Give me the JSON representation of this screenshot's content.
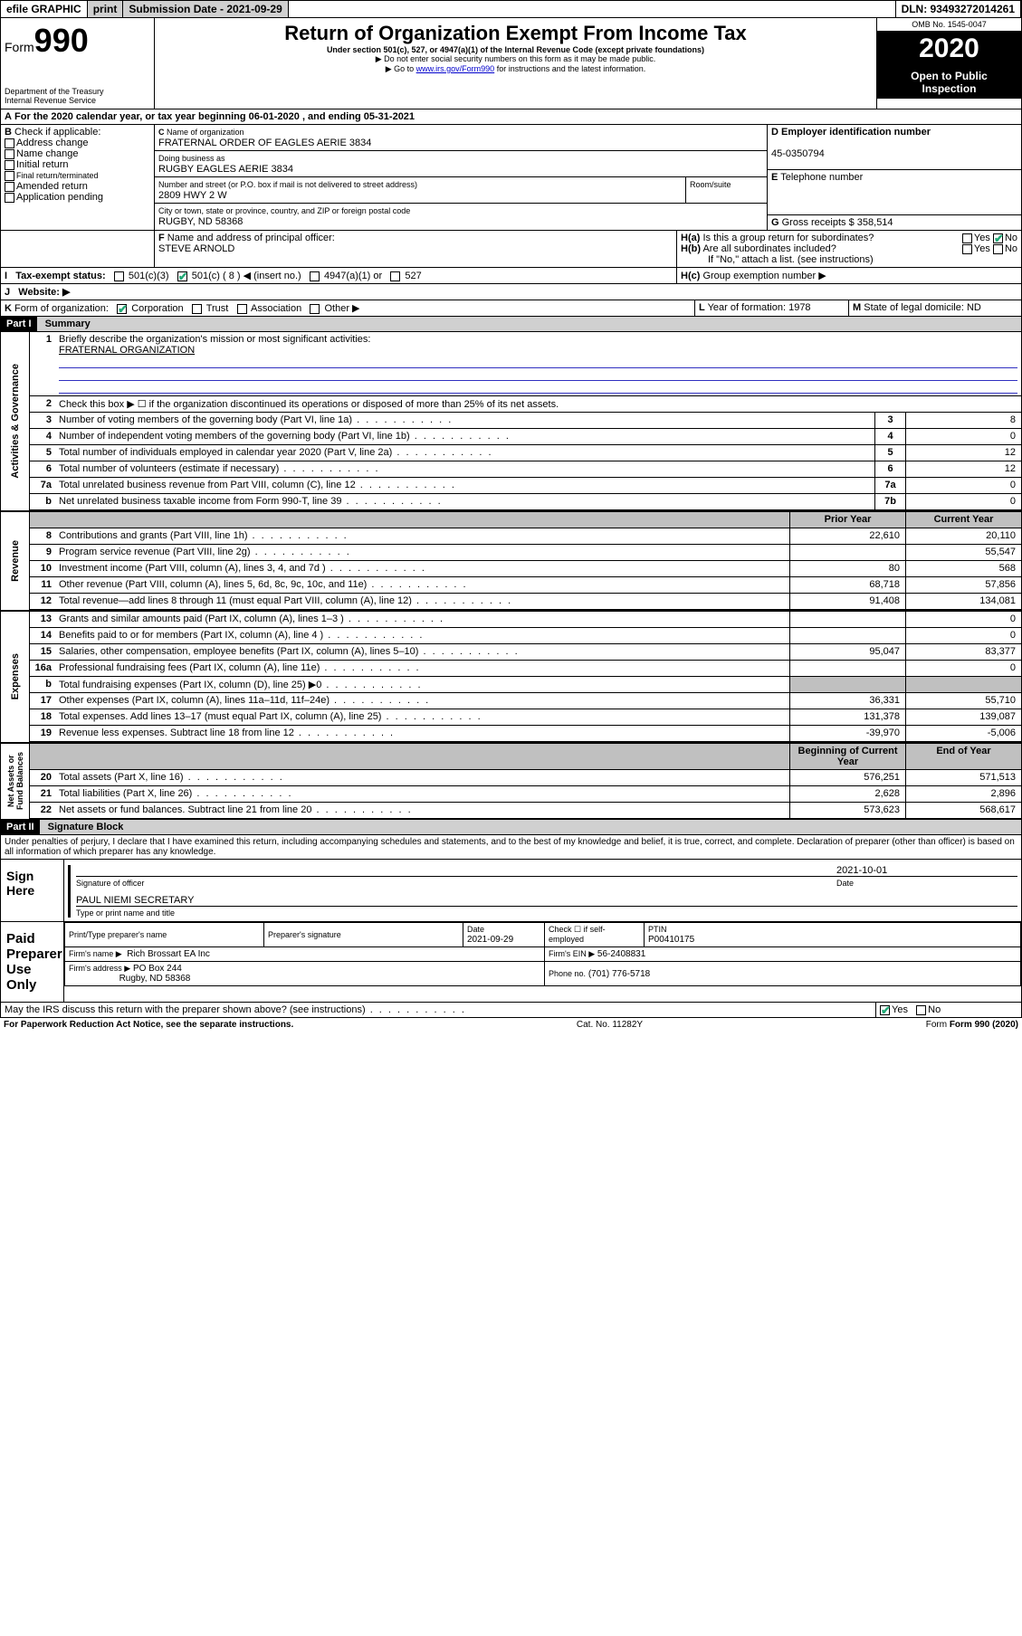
{
  "topbar": {
    "efile": "efile GRAPHIC",
    "print": "print",
    "subdate_label": "Submission Date - 2021-09-29",
    "dln": "DLN: 93493272014261"
  },
  "header": {
    "form_word": "Form",
    "form_num": "990",
    "dept": "Department of the Treasury\nInternal Revenue Service",
    "title": "Return of Organization Exempt From Income Tax",
    "sub1": "Under section 501(c), 527, or 4947(a)(1) of the Internal Revenue Code (except private foundations)",
    "sub2": "▶ Do not enter social security numbers on this form as it may be made public.",
    "sub3_pre": "▶ Go to ",
    "sub3_link": "www.irs.gov/Form990",
    "sub3_post": " for instructions and the latest information.",
    "omb": "OMB No. 1545-0047",
    "year": "2020",
    "open": "Open to Public\nInspection"
  },
  "A": {
    "text": "For the 2020 calendar year, or tax year beginning 06-01-2020   , and ending 05-31-2021"
  },
  "B": {
    "label": "Check if applicable:",
    "opts": [
      "Address change",
      "Name change",
      "Initial return",
      "Final return/terminated",
      "Amended return",
      "Application pending"
    ]
  },
  "C": {
    "name_label": "Name of organization",
    "name": "FRATERNAL ORDER OF EAGLES AERIE 3834",
    "dba_label": "Doing business as",
    "dba": "RUGBY EAGLES AERIE 3834",
    "addr_label": "Number and street (or P.O. box if mail is not delivered to street address)",
    "room_label": "Room/suite",
    "addr": "2809 HWY 2 W",
    "city_label": "City or town, state or province, country, and ZIP or foreign postal code",
    "city": "RUGBY, ND  58368"
  },
  "D": {
    "label": "Employer identification number",
    "val": "45-0350794"
  },
  "E": {
    "label": "Telephone number",
    "val": ""
  },
  "G": {
    "label": "Gross receipts $",
    "val": "358,514"
  },
  "F": {
    "label": "Name and address of principal officer:",
    "val": "STEVE ARNOLD"
  },
  "H": {
    "a": "Is this a group return for subordinates?",
    "b": "Are all subordinates included?",
    "b2": "If \"No,\" attach a list. (see instructions)",
    "c": "Group exemption number ▶",
    "yes": "Yes",
    "no": "No"
  },
  "I": {
    "label": "Tax-exempt status:",
    "o1": "501(c)(3)",
    "o2": "501(c) ( 8 ) ◀ (insert no.)",
    "o3": "4947(a)(1) or",
    "o4": "527"
  },
  "J": {
    "label": "Website: ▶"
  },
  "K": {
    "label": "Form of organization:",
    "o1": "Corporation",
    "o2": "Trust",
    "o3": "Association",
    "o4": "Other ▶"
  },
  "L": {
    "label": "Year of formation:",
    "val": "1978"
  },
  "M": {
    "label": "State of legal domicile:",
    "val": "ND"
  },
  "part1": {
    "bar": "Part I",
    "title": "Summary",
    "l1_label": "Briefly describe the organization's mission or most significant activities:",
    "l1_val": "FRATERNAL ORGANIZATION",
    "l2": "Check this box ▶ ☐  if the organization discontinued its operations or disposed of more than 25% of its net assets.",
    "rows_ag": [
      {
        "n": "3",
        "t": "Number of voting members of the governing body (Part VI, line 1a)",
        "b": "3",
        "v": "8"
      },
      {
        "n": "4",
        "t": "Number of independent voting members of the governing body (Part VI, line 1b)",
        "b": "4",
        "v": "0"
      },
      {
        "n": "5",
        "t": "Total number of individuals employed in calendar year 2020 (Part V, line 2a)",
        "b": "5",
        "v": "12"
      },
      {
        "n": "6",
        "t": "Total number of volunteers (estimate if necessary)",
        "b": "6",
        "v": "12"
      },
      {
        "n": "7a",
        "t": "Total unrelated business revenue from Part VIII, column (C), line 12",
        "b": "7a",
        "v": "0"
      },
      {
        "n": "b",
        "t": "Net unrelated business taxable income from Form 990-T, line 39",
        "b": "7b",
        "v": "0"
      }
    ],
    "col_prior": "Prior Year",
    "col_curr": "Current Year",
    "rows_rev": [
      {
        "n": "8",
        "t": "Contributions and grants (Part VIII, line 1h)",
        "p": "22,610",
        "c": "20,110"
      },
      {
        "n": "9",
        "t": "Program service revenue (Part VIII, line 2g)",
        "p": "",
        "c": "55,547"
      },
      {
        "n": "10",
        "t": "Investment income (Part VIII, column (A), lines 3, 4, and 7d )",
        "p": "80",
        "c": "568"
      },
      {
        "n": "11",
        "t": "Other revenue (Part VIII, column (A), lines 5, 6d, 8c, 9c, 10c, and 11e)",
        "p": "68,718",
        "c": "57,856"
      },
      {
        "n": "12",
        "t": "Total revenue—add lines 8 through 11 (must equal Part VIII, column (A), line 12)",
        "p": "91,408",
        "c": "134,081"
      }
    ],
    "rows_exp": [
      {
        "n": "13",
        "t": "Grants and similar amounts paid (Part IX, column (A), lines 1–3 )",
        "p": "",
        "c": "0"
      },
      {
        "n": "14",
        "t": "Benefits paid to or for members (Part IX, column (A), line 4 )",
        "p": "",
        "c": "0"
      },
      {
        "n": "15",
        "t": "Salaries, other compensation, employee benefits (Part IX, column (A), lines 5–10)",
        "p": "95,047",
        "c": "83,377"
      },
      {
        "n": "16a",
        "t": "Professional fundraising fees (Part IX, column (A), line 11e)",
        "p": "",
        "c": "0"
      },
      {
        "n": "b",
        "t": "Total fundraising expenses (Part IX, column (D), line 25) ▶0",
        "p": "",
        "c": "",
        "shade": true
      },
      {
        "n": "17",
        "t": "Other expenses (Part IX, column (A), lines 11a–11d, 11f–24e)",
        "p": "36,331",
        "c": "55,710"
      },
      {
        "n": "18",
        "t": "Total expenses. Add lines 13–17 (must equal Part IX, column (A), line 25)",
        "p": "131,378",
        "c": "139,087"
      },
      {
        "n": "19",
        "t": "Revenue less expenses. Subtract line 18 from line 12",
        "p": "-39,970",
        "c": "-5,006"
      }
    ],
    "col_beg": "Beginning of Current Year",
    "col_end": "End of Year",
    "rows_na": [
      {
        "n": "20",
        "t": "Total assets (Part X, line 16)",
        "p": "576,251",
        "c": "571,513"
      },
      {
        "n": "21",
        "t": "Total liabilities (Part X, line 26)",
        "p": "2,628",
        "c": "2,896"
      },
      {
        "n": "22",
        "t": "Net assets or fund balances. Subtract line 21 from line 20",
        "p": "573,623",
        "c": "568,617"
      }
    ],
    "side_ag": "Activities & Governance",
    "side_rev": "Revenue",
    "side_exp": "Expenses",
    "side_na": "Net Assets or\nFund Balances"
  },
  "part2": {
    "bar": "Part II",
    "title": "Signature Block",
    "decl": "Under penalties of perjury, I declare that I have examined this return, including accompanying schedules and statements, and to the best of my knowledge and belief, it is true, correct, and complete. Declaration of preparer (other than officer) is based on all information of which preparer has any knowledge.",
    "sign_here": "Sign\nHere",
    "sig_officer": "Signature of officer",
    "sig_date_label": "Date",
    "sig_date": "2021-10-01",
    "sig_name": "PAUL NIEMI SECRETARY",
    "sig_name_label": "Type or print name and title",
    "paid": "Paid\nPreparer\nUse Only",
    "p_name_label": "Print/Type preparer's name",
    "p_sig_label": "Preparer's signature",
    "p_date_label": "Date",
    "p_date": "2021-09-29",
    "p_self": "Check ☐ if self-employed",
    "p_ptin_label": "PTIN",
    "p_ptin": "P00410175",
    "p_firm_label": "Firm's name   ▶",
    "p_firm": "Rich Brossart EA Inc",
    "p_ein_label": "Firm's EIN ▶",
    "p_ein": "56-2408831",
    "p_addr_label": "Firm's address ▶",
    "p_addr1": "PO Box 244",
    "p_addr2": "Rugby, ND  58368",
    "p_phone_label": "Phone no.",
    "p_phone": "(701) 776-5718",
    "discuss": "May the IRS discuss this return with the preparer shown above? (see instructions)",
    "yes": "Yes",
    "no": "No"
  },
  "footer": {
    "pra": "For Paperwork Reduction Act Notice, see the separate instructions.",
    "cat": "Cat. No. 11282Y",
    "form": "Form 990 (2020)"
  }
}
